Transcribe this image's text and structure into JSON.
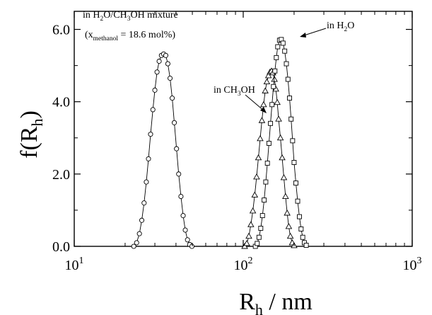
{
  "chart_data": {
    "type": "scatter",
    "title": "",
    "xlabel_main": "R",
    "xlabel_sub": "h",
    "xlabel_tail": " / nm",
    "ylabel_main": "f(R",
    "ylabel_sub": "h",
    "ylabel_tail": ")",
    "x_scale": "log",
    "xlim": [
      10,
      1000
    ],
    "ylim": [
      0,
      6.5
    ],
    "x_ticks": [
      {
        "value": 10,
        "base": "10",
        "exp": "1"
      },
      {
        "value": 100,
        "base": "10",
        "exp": "2"
      },
      {
        "value": 1000,
        "base": "10",
        "exp": "3"
      }
    ],
    "y_ticks": [
      {
        "value": 0,
        "label": "0.0"
      },
      {
        "value": 2,
        "label": "2.0"
      },
      {
        "value": 4,
        "label": "4.0"
      },
      {
        "value": 6,
        "label": "6.0"
      }
    ],
    "annotations": {
      "box_line1_a": "in H",
      "box_line1_b": "2",
      "box_line1_c": "O/CH",
      "box_line1_d": "3",
      "box_line1_e": "OH mixture",
      "box_line2_a": "(x",
      "box_line2_b": "methanol",
      "box_line2_c": " = 18.6 mol%)",
      "water_a": "in H",
      "water_b": "2",
      "water_c": "O",
      "ch3oh_a": "in CH",
      "ch3oh_b": "3",
      "ch3oh_c": "OH"
    },
    "series": [
      {
        "marker": "circle",
        "points": [
          [
            22.5,
            0.0
          ],
          [
            23.4,
            0.1
          ],
          [
            24.3,
            0.35
          ],
          [
            25.1,
            0.72
          ],
          [
            25.9,
            1.2
          ],
          [
            26.7,
            1.78
          ],
          [
            27.5,
            2.42
          ],
          [
            28.3,
            3.1
          ],
          [
            29.2,
            3.78
          ],
          [
            30.0,
            4.32
          ],
          [
            30.9,
            4.82
          ],
          [
            31.8,
            5.12
          ],
          [
            32.8,
            5.28
          ],
          [
            33.8,
            5.32
          ],
          [
            34.8,
            5.28
          ],
          [
            35.8,
            5.05
          ],
          [
            36.9,
            4.65
          ],
          [
            38.0,
            4.1
          ],
          [
            39.1,
            3.42
          ],
          [
            40.3,
            2.7
          ],
          [
            41.5,
            2.0
          ],
          [
            42.8,
            1.38
          ],
          [
            44.1,
            0.85
          ],
          [
            45.4,
            0.45
          ],
          [
            46.8,
            0.18
          ],
          [
            48.2,
            0.05
          ],
          [
            49.7,
            0.0
          ]
        ]
      },
      {
        "marker": "triangle",
        "points": [
          [
            102,
            0.0
          ],
          [
            105,
            0.08
          ],
          [
            108,
            0.28
          ],
          [
            111,
            0.6
          ],
          [
            114,
            0.98
          ],
          [
            117,
            1.42
          ],
          [
            120,
            1.92
          ],
          [
            123,
            2.45
          ],
          [
            126,
            2.98
          ],
          [
            129,
            3.48
          ],
          [
            132,
            3.92
          ],
          [
            135,
            4.3
          ],
          [
            138,
            4.55
          ],
          [
            141,
            4.72
          ],
          [
            144,
            4.82
          ],
          [
            147,
            4.85
          ],
          [
            150,
            4.8
          ],
          [
            153,
            4.62
          ],
          [
            156,
            4.35
          ],
          [
            159,
            3.98
          ],
          [
            162,
            3.52
          ],
          [
            166,
            3.0
          ],
          [
            170,
            2.45
          ],
          [
            174,
            1.9
          ],
          [
            178,
            1.38
          ],
          [
            182,
            0.92
          ],
          [
            186,
            0.55
          ],
          [
            190,
            0.28
          ],
          [
            195,
            0.1
          ],
          [
            200,
            0.02
          ]
        ]
      },
      {
        "marker": "square",
        "points": [
          [
            118,
            0.0
          ],
          [
            121,
            0.08
          ],
          [
            124,
            0.25
          ],
          [
            127,
            0.5
          ],
          [
            130,
            0.85
          ],
          [
            133,
            1.28
          ],
          [
            136,
            1.78
          ],
          [
            139,
            2.3
          ],
          [
            142,
            2.85
          ],
          [
            145,
            3.4
          ],
          [
            148,
            3.92
          ],
          [
            151,
            4.42
          ],
          [
            154,
            4.85
          ],
          [
            157,
            5.22
          ],
          [
            160,
            5.52
          ],
          [
            164,
            5.7
          ],
          [
            168,
            5.72
          ],
          [
            172,
            5.62
          ],
          [
            176,
            5.4
          ],
          [
            180,
            5.05
          ],
          [
            184,
            4.62
          ],
          [
            188,
            4.1
          ],
          [
            192,
            3.52
          ],
          [
            196,
            2.92
          ],
          [
            200,
            2.32
          ],
          [
            205,
            1.75
          ],
          [
            210,
            1.25
          ],
          [
            215,
            0.82
          ],
          [
            220,
            0.48
          ],
          [
            225,
            0.25
          ],
          [
            230,
            0.1
          ],
          [
            236,
            0.03
          ]
        ]
      }
    ]
  }
}
